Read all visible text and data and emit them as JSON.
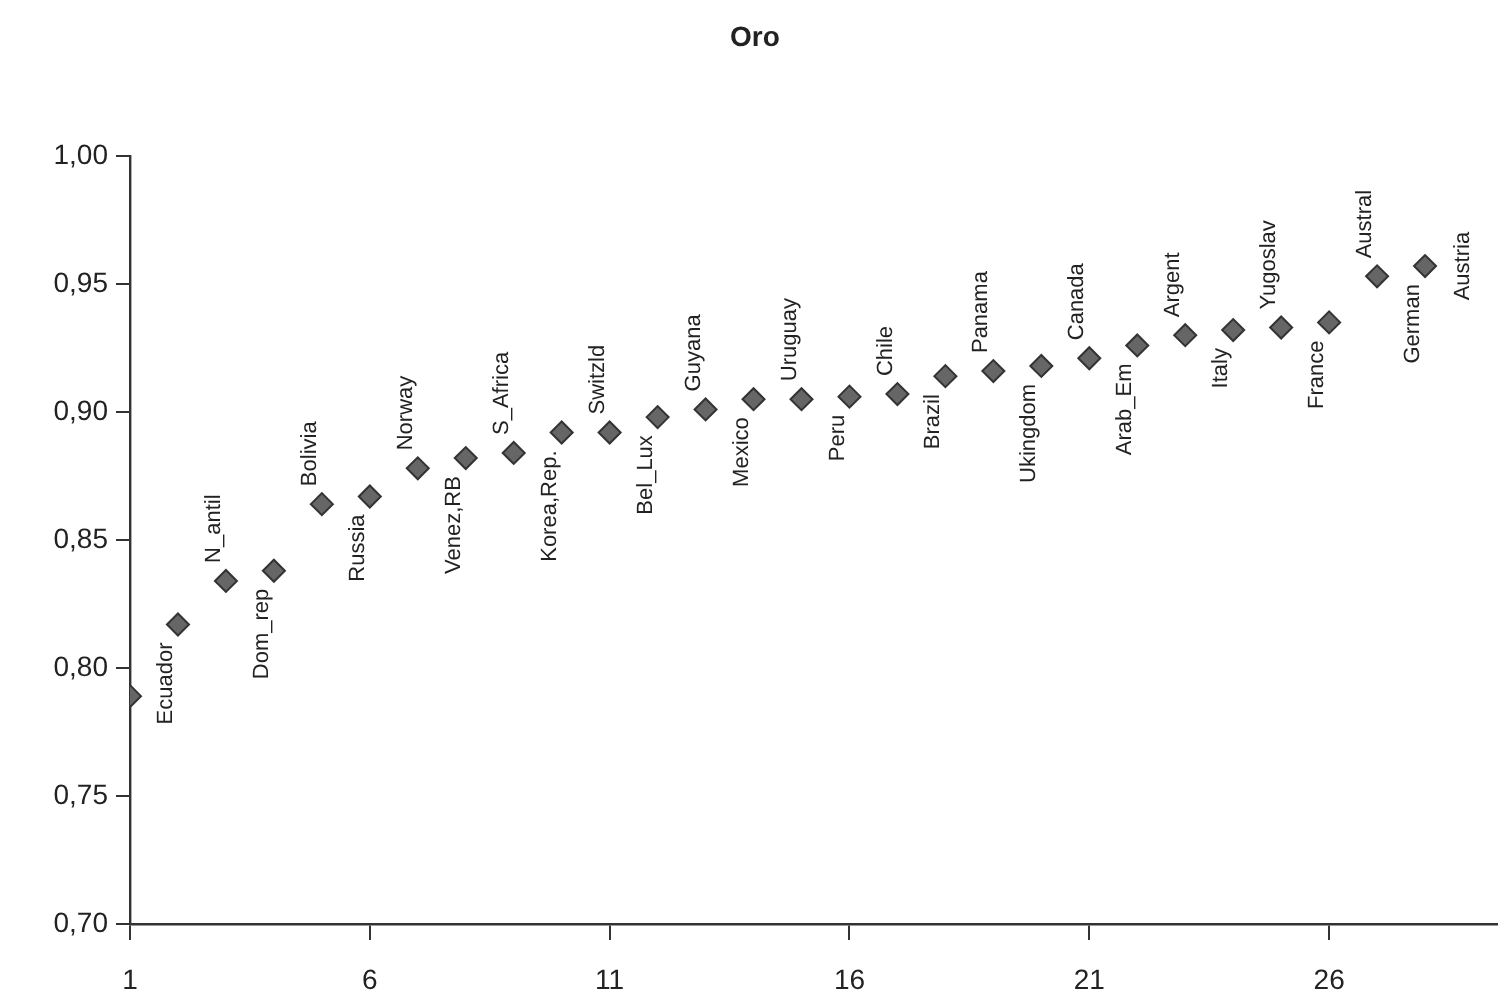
{
  "chart_data": {
    "type": "scatter",
    "title": "Oro",
    "x": [
      1,
      2,
      3,
      4,
      5,
      6,
      7,
      8,
      9,
      10,
      11,
      12,
      13,
      14,
      15,
      16,
      17,
      18,
      19,
      20,
      21,
      22,
      23,
      24,
      25,
      26,
      27,
      28
    ],
    "series": [
      {
        "color": "#666666",
        "values": [
          0.789,
          0.817,
          0.834,
          0.838,
          0.864,
          0.867,
          0.878,
          0.882,
          0.884,
          0.892,
          0.892,
          0.898,
          0.901,
          0.905,
          0.905,
          0.906,
          0.907,
          0.914,
          0.916,
          0.918,
          0.921,
          0.926,
          0.93,
          0.932,
          0.933,
          0.935,
          0.953,
          0.957
        ]
      }
    ],
    "xlim": [
      1,
      29.5
    ],
    "xticks": [
      1,
      6,
      11,
      16,
      21,
      26
    ],
    "ylim": [
      0.7,
      1.0
    ],
    "yticks": [
      {
        "value": 0.7,
        "label": "0,70"
      },
      {
        "value": 0.75,
        "label": "0,75"
      },
      {
        "value": 0.8,
        "label": "0,80"
      },
      {
        "value": 0.85,
        "label": "0,85"
      },
      {
        "value": 0.9,
        "label": "0,90"
      },
      {
        "value": 0.95,
        "label": "0,95"
      },
      {
        "value": 1.0,
        "label": "1,00"
      }
    ],
    "marker": "diamond",
    "grid": false,
    "legend": false,
    "annotations": [
      {
        "text": "Ecuador",
        "x": 2,
        "y": 0.817
      },
      {
        "text": "N_antil",
        "x": 3,
        "y": 0.834
      },
      {
        "text": "Dom_rep",
        "x": 4,
        "y": 0.838
      },
      {
        "text": "Bolivia",
        "x": 5,
        "y": 0.864
      },
      {
        "text": "Russia",
        "x": 6,
        "y": 0.867
      },
      {
        "text": "Norway",
        "x": 7,
        "y": 0.878
      },
      {
        "text": "Venez,RB",
        "x": 8,
        "y": 0.882
      },
      {
        "text": "S_Africa",
        "x": 9,
        "y": 0.884
      },
      {
        "text": "Korea,Rep.",
        "x": 10,
        "y": 0.892
      },
      {
        "text": "Switzld",
        "x": 11,
        "y": 0.892
      },
      {
        "text": "Bel_Lux",
        "x": 12,
        "y": 0.898
      },
      {
        "text": "Guyana",
        "x": 13,
        "y": 0.901
      },
      {
        "text": "Mexico",
        "x": 14,
        "y": 0.905
      },
      {
        "text": "Uruguay",
        "x": 15,
        "y": 0.905
      },
      {
        "text": "Peru",
        "x": 16,
        "y": 0.906
      },
      {
        "text": "Chile",
        "x": 17,
        "y": 0.907
      },
      {
        "text": "Brazil",
        "x": 18,
        "y": 0.914
      },
      {
        "text": "Panama",
        "x": 19,
        "y": 0.916
      },
      {
        "text": "Ukingdom",
        "x": 20,
        "y": 0.918
      },
      {
        "text": "Canada",
        "x": 21,
        "y": 0.921
      },
      {
        "text": "Arab_Em",
        "x": 22,
        "y": 0.926
      },
      {
        "text": "Argent",
        "x": 23,
        "y": 0.93
      },
      {
        "text": "Italy",
        "x": 24,
        "y": 0.932
      },
      {
        "text": "Yugoslav",
        "x": 25,
        "y": 0.933
      },
      {
        "text": "France",
        "x": 26,
        "y": 0.935
      },
      {
        "text": "Austral",
        "x": 27,
        "y": 0.953
      },
      {
        "text": "German",
        "x": 28,
        "y": 0.957
      },
      {
        "text": "Austria",
        "x": 28,
        "y": 0.957
      }
    ]
  }
}
